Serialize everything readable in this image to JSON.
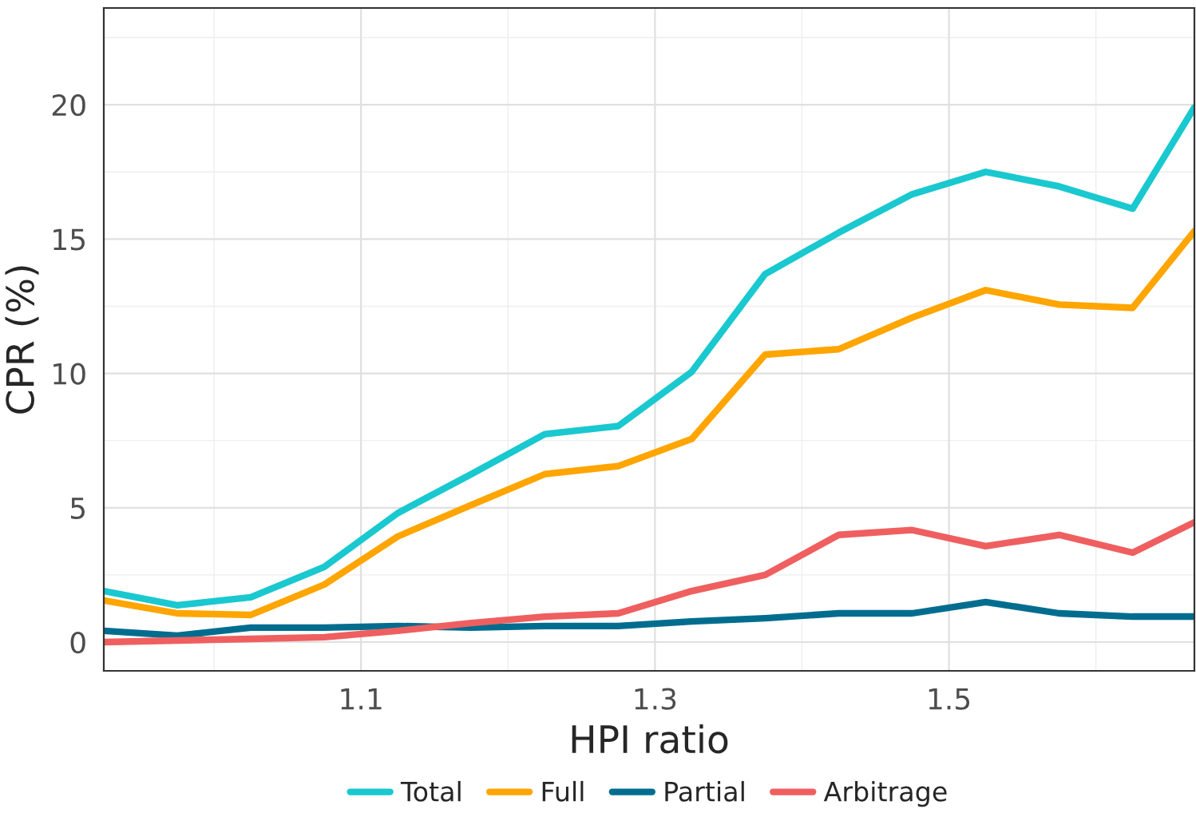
{
  "chart_data": {
    "type": "line",
    "xlabel": "HPI ratio",
    "ylabel": "CPR (%)",
    "x": [
      0.925,
      0.975,
      1.025,
      1.075,
      1.125,
      1.175,
      1.225,
      1.275,
      1.325,
      1.375,
      1.425,
      1.475,
      1.525,
      1.575,
      1.625,
      1.667
    ],
    "series": [
      {
        "name": "Total",
        "color": "#1ac8cf",
        "values": [
          1.9,
          1.37,
          1.67,
          2.8,
          4.8,
          6.25,
          7.74,
          8.04,
          10.06,
          13.7,
          15.24,
          16.67,
          17.5,
          16.96,
          16.13,
          19.9
        ]
      },
      {
        "name": "Full",
        "color": "#ffa500",
        "values": [
          1.55,
          1.07,
          1.01,
          2.14,
          3.93,
          5.1,
          6.25,
          6.55,
          7.56,
          10.7,
          10.9,
          12.08,
          13.1,
          12.56,
          12.44,
          15.3
        ]
      },
      {
        "name": "Partial",
        "color": "#006d8f",
        "values": [
          0.42,
          0.24,
          0.54,
          0.54,
          0.6,
          0.54,
          0.6,
          0.6,
          0.77,
          0.89,
          1.07,
          1.07,
          1.49,
          1.07,
          0.95,
          0.95
        ]
      },
      {
        "name": "Arbitrage",
        "color": "#ef5f60",
        "values": [
          0.0,
          0.06,
          0.12,
          0.18,
          0.42,
          0.71,
          0.95,
          1.07,
          1.9,
          2.5,
          3.99,
          4.17,
          3.57,
          3.99,
          3.33,
          4.46
        ]
      }
    ],
    "xlim": [
      0.925,
      1.667
    ],
    "ylim": [
      -1.07,
      23.6
    ],
    "xticks": [
      1.1,
      1.3,
      1.5
    ],
    "yticks": [
      0,
      5,
      10,
      15,
      20
    ],
    "grid": true,
    "legend": "bottom",
    "line_style": "solid",
    "marker": "none"
  }
}
